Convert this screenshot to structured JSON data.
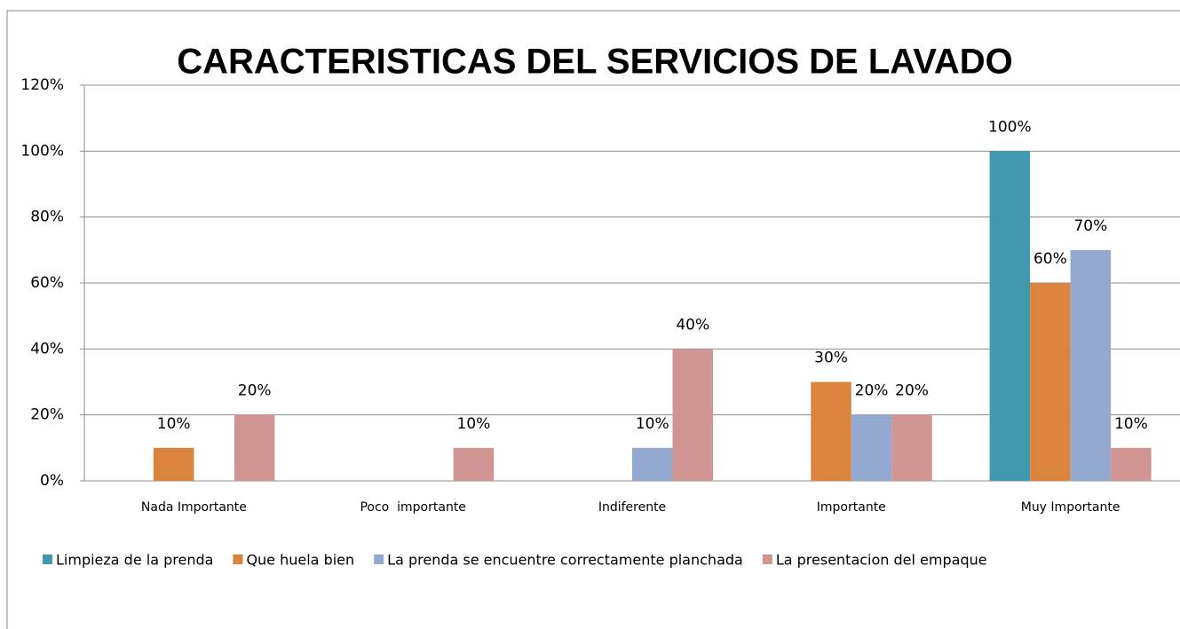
{
  "chart_data": {
    "type": "bar",
    "title": "CARACTERISTICAS DEL SERVICIOS DE LAVADO",
    "categories": [
      "Nada Importante",
      "Poco  importante",
      "Indiferente",
      "Importante",
      "Muy Importante"
    ],
    "series": [
      {
        "name": "Limpieza de la prenda",
        "color": "#4198af",
        "values": [
          null,
          null,
          null,
          null,
          100
        ],
        "value_labels": [
          null,
          null,
          null,
          null,
          "100%"
        ]
      },
      {
        "name": "Que huela bien",
        "color": "#db843d",
        "values": [
          10,
          null,
          null,
          30,
          60
        ],
        "value_labels": [
          "10%",
          null,
          null,
          "30%",
          "60%"
        ]
      },
      {
        "name": "La prenda se encuentre correctamente planchada",
        "color": "#93a9cf",
        "values": [
          null,
          null,
          10,
          20,
          70
        ],
        "value_labels": [
          null,
          null,
          "10%",
          "20%",
          "70%"
        ]
      },
      {
        "name": "La presentacion del empaque",
        "color": "#d09593",
        "values": [
          20,
          10,
          40,
          20,
          10
        ],
        "value_labels": [
          "20%",
          "10%",
          "40%",
          "20%",
          "10%"
        ]
      }
    ],
    "ylim": [
      0,
      120
    ],
    "yticks": [
      {
        "value": 0,
        "label": "0%"
      },
      {
        "value": 20,
        "label": "20%"
      },
      {
        "value": 40,
        "label": "40%"
      },
      {
        "value": 60,
        "label": "60%"
      },
      {
        "value": 80,
        "label": "80%"
      },
      {
        "value": 100,
        "label": "100%"
      },
      {
        "value": 120,
        "label": "120%"
      }
    ],
    "grid": true,
    "legend": "bottom"
  }
}
